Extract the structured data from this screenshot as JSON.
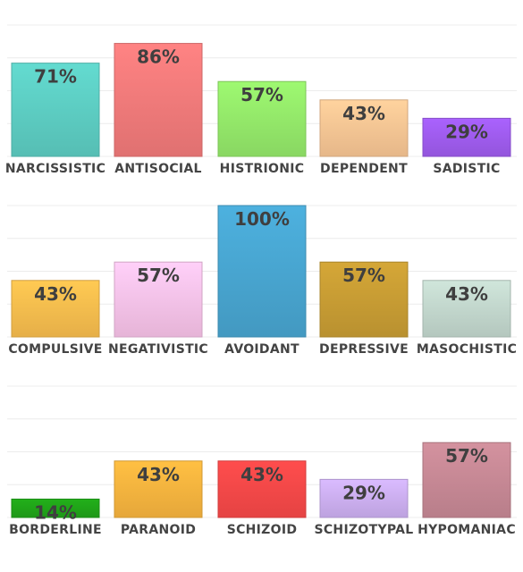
{
  "chart_data": [
    {
      "type": "bar",
      "categories": [
        "NARCISSISTIC",
        "ANTISOCIAL",
        "HISTRIONIC",
        "DEPENDENT",
        "SADISTIC"
      ],
      "values": [
        71,
        86,
        57,
        43,
        29
      ],
      "value_labels": [
        "71%",
        "86%",
        "57%",
        "43%",
        "29%"
      ],
      "colors": [
        "#5fd3c8",
        "#f97e7e",
        "#98ef6d",
        "#ffcb98",
        "#a35ef4"
      ],
      "ylim": [
        0,
        100
      ],
      "grid": true,
      "title": "",
      "xlabel": "",
      "ylabel": ""
    },
    {
      "type": "bar",
      "categories": [
        "COMPULSIVE",
        "NEGATIVISTIC",
        "AVOIDANT",
        "DEPRESSIVE",
        "MASOCHISTIC"
      ],
      "values": [
        43,
        57,
        100,
        57,
        43
      ],
      "value_labels": [
        "43%",
        "57%",
        "100%",
        "57%",
        "43%"
      ],
      "colors": [
        "#ffc250",
        "#ffc8ef",
        "#4aaad6",
        "#cda135",
        "#c8ddd3"
      ],
      "ylim": [
        0,
        100
      ],
      "grid": true,
      "title": "",
      "xlabel": "",
      "ylabel": ""
    },
    {
      "type": "bar",
      "categories": [
        "BORDERLINE",
        "PARANOID",
        "SCHIZOID",
        "SCHIZOTYPAL",
        "HYPOMANIAC"
      ],
      "values": [
        14,
        43,
        43,
        29,
        57
      ],
      "value_labels": [
        "14%",
        "43%",
        "43%",
        "29%",
        "57%"
      ],
      "colors": [
        "#21a919",
        "#ffb940",
        "#fe4a4a",
        "#d2b4f8",
        "#cc8c99"
      ],
      "ylim": [
        0,
        100
      ],
      "grid": true,
      "title": "",
      "xlabel": "",
      "ylabel": ""
    }
  ]
}
